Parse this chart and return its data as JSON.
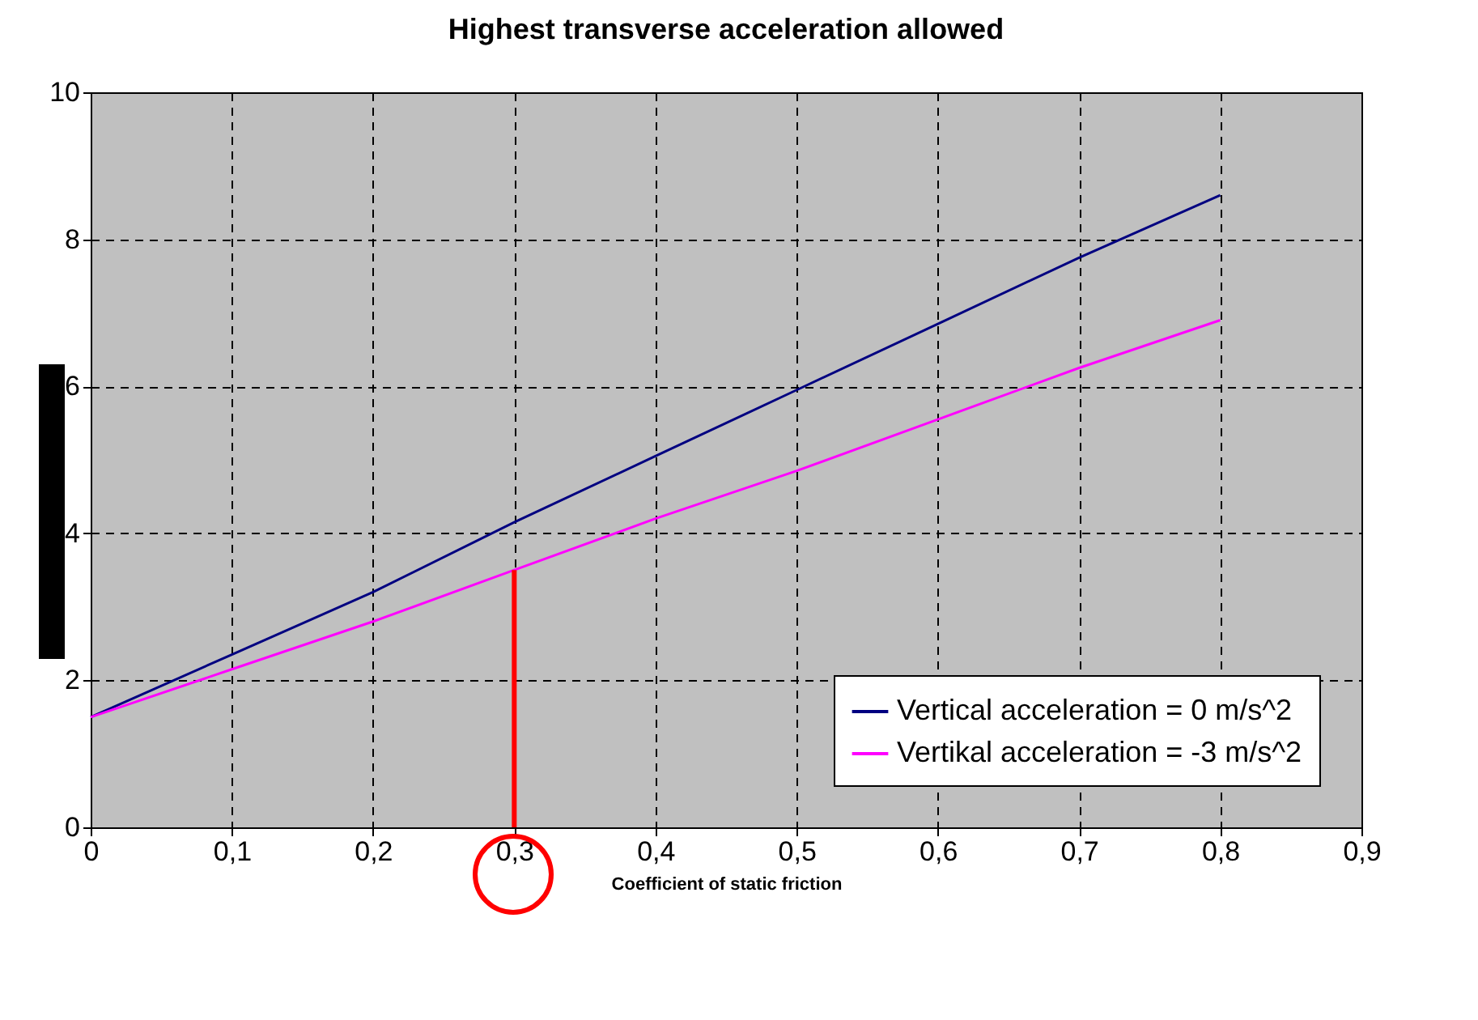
{
  "chart_data": {
    "type": "line",
    "title": "Highest transverse acceleration allowed",
    "xlabel": "Coefficient of static friction",
    "x": [
      0,
      0.1,
      0.2,
      0.3,
      0.4,
      0.5,
      0.6,
      0.7,
      0.8
    ],
    "series": [
      {
        "name": "Vertical acceleration = 0 m/s^2",
        "color": "#000080",
        "values": [
          1.5,
          2.35,
          3.2,
          4.15,
          5.05,
          5.95,
          6.85,
          7.75,
          8.6
        ]
      },
      {
        "name": "Vertikal acceleration = -3 m/s^2",
        "color": "#ff00ff",
        "values": [
          1.5,
          2.15,
          2.8,
          3.5,
          4.2,
          4.85,
          5.55,
          6.25,
          6.9
        ]
      },
      {
        "type": "line",
        "color": "#ff0000",
        "x": [
          0.3,
          0.3
        ],
        "values": [
          0,
          3.5
        ]
      }
    ],
    "xlim": [
      0,
      0.9
    ],
    "xticks": [
      0,
      {
        "value": 0.1,
        "label": "0,1"
      },
      {
        "value": 0.2,
        "label": "0,2"
      },
      {
        "value": 0.3,
        "label": "0,3"
      },
      {
        "value": 0.4,
        "label": "0,4"
      },
      {
        "value": 0.5,
        "label": "0,5"
      },
      {
        "value": 0.6,
        "label": "0,6"
      },
      {
        "value": 0.7,
        "label": "0,7"
      },
      {
        "value": 0.8,
        "label": "0,8"
      },
      {
        "value": 0.9,
        "label": "0,9"
      }
    ],
    "ylim": [
      0,
      10
    ],
    "yticks": [
      0,
      2,
      4,
      6,
      8,
      10
    ],
    "grid": true,
    "legend": "bottom right",
    "line_style": "solid"
  }
}
